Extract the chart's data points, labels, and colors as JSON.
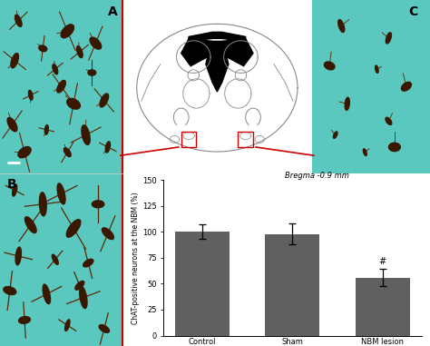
{
  "bar_labels": [
    "Control",
    "Sham",
    "NBM lesion"
  ],
  "bar_values": [
    100,
    98,
    56
  ],
  "bar_errors": [
    7,
    10,
    8
  ],
  "bar_color": "#606060",
  "ylabel": "ChAT-positive neurons at the NBM (%)",
  "ylim": [
    0,
    150
  ],
  "yticks": [
    0,
    25,
    50,
    75,
    100,
    125,
    150
  ],
  "background_color": "#ffffff",
  "panel_A_label": "A",
  "panel_B_label": "B",
  "panel_C_label": "C",
  "bregma_label": "Bregma -0.9 mm",
  "teal_color": "#5bc8c0",
  "annotation_star": "#",
  "fig_bg": "#ffffff",
  "neuron_color": "#3a1800",
  "neuron_color2": "#5a2800",
  "line_color_brain": "#888888",
  "red_line": "#cc0000",
  "scale_bar_color": "#ffffff"
}
